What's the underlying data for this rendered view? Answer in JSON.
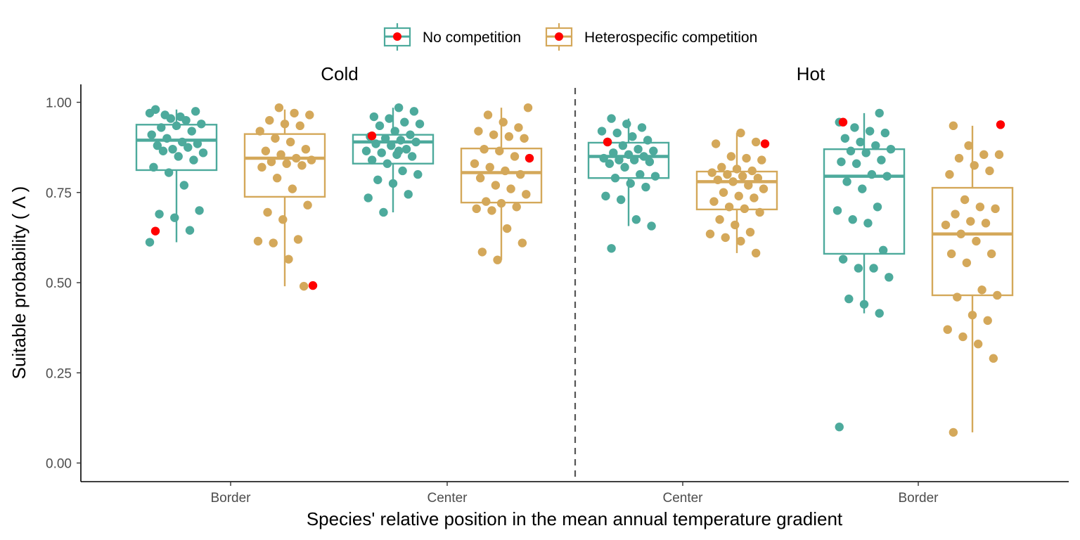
{
  "chart_data": {
    "type": "box",
    "ylabel": "Suitable probability ( Λ )",
    "xlabel": "Species' relative position in the mean annual temperature gradient",
    "ylim": [
      -0.05,
      1.05
    ],
    "yticks": [
      0.0,
      0.25,
      0.5,
      0.75,
      1.0
    ],
    "ytick_labels": [
      "0.00",
      "0.25",
      "0.50",
      "0.75",
      "1.00"
    ],
    "grid": false,
    "legend_position": "top",
    "facets": [
      "Cold",
      "Hot"
    ],
    "categories": [
      "Border",
      "Center",
      "Center",
      "Border"
    ],
    "category_facets": [
      "Cold",
      "Cold",
      "Hot",
      "Hot"
    ],
    "highlight_color": "#FF0000",
    "series": [
      {
        "name": "No competition",
        "color": "#4DAA9C",
        "boxes": [
          {
            "q1": 0.812,
            "median": 0.895,
            "q3": 0.938,
            "whisker_low": 0.612,
            "whisker_high": 0.98
          },
          {
            "q1": 0.83,
            "median": 0.89,
            "q3": 0.91,
            "whisker_low": 0.695,
            "whisker_high": 0.985
          },
          {
            "q1": 0.79,
            "median": 0.85,
            "q3": 0.888,
            "whisker_low": 0.657,
            "whisker_high": 0.955
          },
          {
            "q1": 0.58,
            "median": 0.795,
            "q3": 0.87,
            "whisker_low": 0.415,
            "whisker_high": 0.97
          }
        ],
        "highlight": [
          0.643,
          0.907,
          0.89,
          0.945
        ],
        "points": [
          [
            0.97,
            0.965,
            0.96,
            0.975,
            0.98,
            0.955,
            0.95,
            0.94,
            0.93,
            0.935,
            0.92,
            0.91,
            0.9,
            0.89,
            0.885,
            0.88,
            0.87,
            0.875,
            0.86,
            0.865,
            0.85,
            0.84,
            0.82,
            0.805,
            0.77,
            0.7,
            0.69,
            0.68,
            0.645,
            0.612
          ],
          [
            0.985,
            0.975,
            0.96,
            0.955,
            0.945,
            0.94,
            0.935,
            0.92,
            0.91,
            0.905,
            0.9,
            0.895,
            0.89,
            0.885,
            0.88,
            0.87,
            0.865,
            0.86,
            0.855,
            0.85,
            0.84,
            0.83,
            0.81,
            0.8,
            0.785,
            0.775,
            0.745,
            0.735,
            0.695,
            0.865
          ],
          [
            0.955,
            0.94,
            0.93,
            0.92,
            0.915,
            0.905,
            0.895,
            0.89,
            0.88,
            0.87,
            0.865,
            0.86,
            0.855,
            0.85,
            0.845,
            0.84,
            0.84,
            0.835,
            0.83,
            0.82,
            0.8,
            0.795,
            0.79,
            0.775,
            0.765,
            0.74,
            0.73,
            0.675,
            0.657,
            0.595
          ],
          [
            0.97,
            0.945,
            0.93,
            0.92,
            0.915,
            0.9,
            0.89,
            0.88,
            0.87,
            0.865,
            0.86,
            0.84,
            0.835,
            0.83,
            0.8,
            0.795,
            0.78,
            0.76,
            0.71,
            0.7,
            0.675,
            0.665,
            0.59,
            0.565,
            0.54,
            0.54,
            0.515,
            0.455,
            0.44,
            0.415,
            0.1
          ]
        ]
      },
      {
        "name": "Heterospecific competition",
        "color": "#D4A85A",
        "boxes": [
          {
            "q1": 0.738,
            "median": 0.845,
            "q3": 0.912,
            "whisker_low": 0.49,
            "whisker_high": 0.98
          },
          {
            "q1": 0.722,
            "median": 0.805,
            "q3": 0.872,
            "whisker_low": 0.563,
            "whisker_high": 0.985
          },
          {
            "q1": 0.703,
            "median": 0.78,
            "q3": 0.808,
            "whisker_low": 0.582,
            "whisker_high": 0.915
          },
          {
            "q1": 0.465,
            "median": 0.635,
            "q3": 0.763,
            "whisker_low": 0.085,
            "whisker_high": 0.935
          }
        ],
        "highlight": [
          0.492,
          0.845,
          0.885,
          0.938
        ],
        "points": [
          [
            0.985,
            0.97,
            0.965,
            0.95,
            0.94,
            0.935,
            0.92,
            0.9,
            0.89,
            0.87,
            0.865,
            0.855,
            0.845,
            0.84,
            0.835,
            0.83,
            0.825,
            0.82,
            0.79,
            0.76,
            0.715,
            0.695,
            0.675,
            0.62,
            0.615,
            0.61,
            0.565,
            0.49
          ],
          [
            0.985,
            0.965,
            0.945,
            0.93,
            0.92,
            0.91,
            0.905,
            0.9,
            0.87,
            0.865,
            0.85,
            0.83,
            0.82,
            0.81,
            0.8,
            0.79,
            0.77,
            0.76,
            0.745,
            0.725,
            0.72,
            0.71,
            0.705,
            0.7,
            0.65,
            0.61,
            0.585,
            0.563
          ],
          [
            0.915,
            0.89,
            0.885,
            0.85,
            0.845,
            0.84,
            0.82,
            0.815,
            0.81,
            0.805,
            0.8,
            0.795,
            0.79,
            0.785,
            0.78,
            0.77,
            0.76,
            0.75,
            0.74,
            0.735,
            0.725,
            0.71,
            0.705,
            0.695,
            0.675,
            0.66,
            0.64,
            0.635,
            0.625,
            0.615,
            0.582
          ],
          [
            0.935,
            0.88,
            0.855,
            0.855,
            0.845,
            0.825,
            0.81,
            0.8,
            0.73,
            0.71,
            0.705,
            0.69,
            0.67,
            0.665,
            0.66,
            0.635,
            0.615,
            0.58,
            0.58,
            0.555,
            0.48,
            0.465,
            0.46,
            0.41,
            0.395,
            0.37,
            0.35,
            0.33,
            0.29,
            0.085
          ]
        ]
      }
    ]
  }
}
